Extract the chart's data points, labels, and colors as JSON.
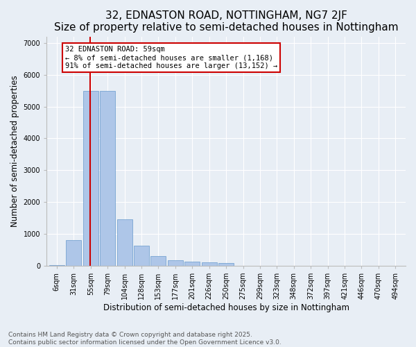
{
  "title": "32, EDNASTON ROAD, NOTTINGHAM, NG7 2JF",
  "subtitle": "Size of property relative to semi-detached houses in Nottingham",
  "xlabel": "Distribution of semi-detached houses by size in Nottingham",
  "ylabel": "Number of semi-detached properties",
  "categories": [
    "6sqm",
    "31sqm",
    "55sqm",
    "79sqm",
    "104sqm",
    "128sqm",
    "153sqm",
    "177sqm",
    "201sqm",
    "226sqm",
    "250sqm",
    "275sqm",
    "299sqm",
    "323sqm",
    "348sqm",
    "372sqm",
    "397sqm",
    "421sqm",
    "446sqm",
    "470sqm",
    "494sqm"
  ],
  "values": [
    20,
    800,
    5500,
    5500,
    1450,
    620,
    310,
    180,
    130,
    100,
    80,
    0,
    0,
    0,
    0,
    0,
    0,
    0,
    0,
    0,
    0
  ],
  "bar_color": "#aec6e8",
  "bar_edge_color": "#6699cc",
  "vline_color": "#cc0000",
  "property_label": "32 EDNASTON ROAD: 59sqm",
  "smaller_pct": 8,
  "smaller_count": 1168,
  "larger_pct": 91,
  "larger_count": 13152,
  "annotation_box_color": "#cc0000",
  "ylim": [
    0,
    7200
  ],
  "yticks": [
    0,
    1000,
    2000,
    3000,
    4000,
    5000,
    6000,
    7000
  ],
  "bg_color": "#e8eef5",
  "plot_bg_color": "#e8eef5",
  "footer_line1": "Contains HM Land Registry data © Crown copyright and database right 2025.",
  "footer_line2": "Contains public sector information licensed under the Open Government Licence v3.0.",
  "title_fontsize": 11,
  "axis_label_fontsize": 8.5,
  "tick_fontsize": 7,
  "footer_fontsize": 6.5,
  "annotation_fontsize": 7.5
}
